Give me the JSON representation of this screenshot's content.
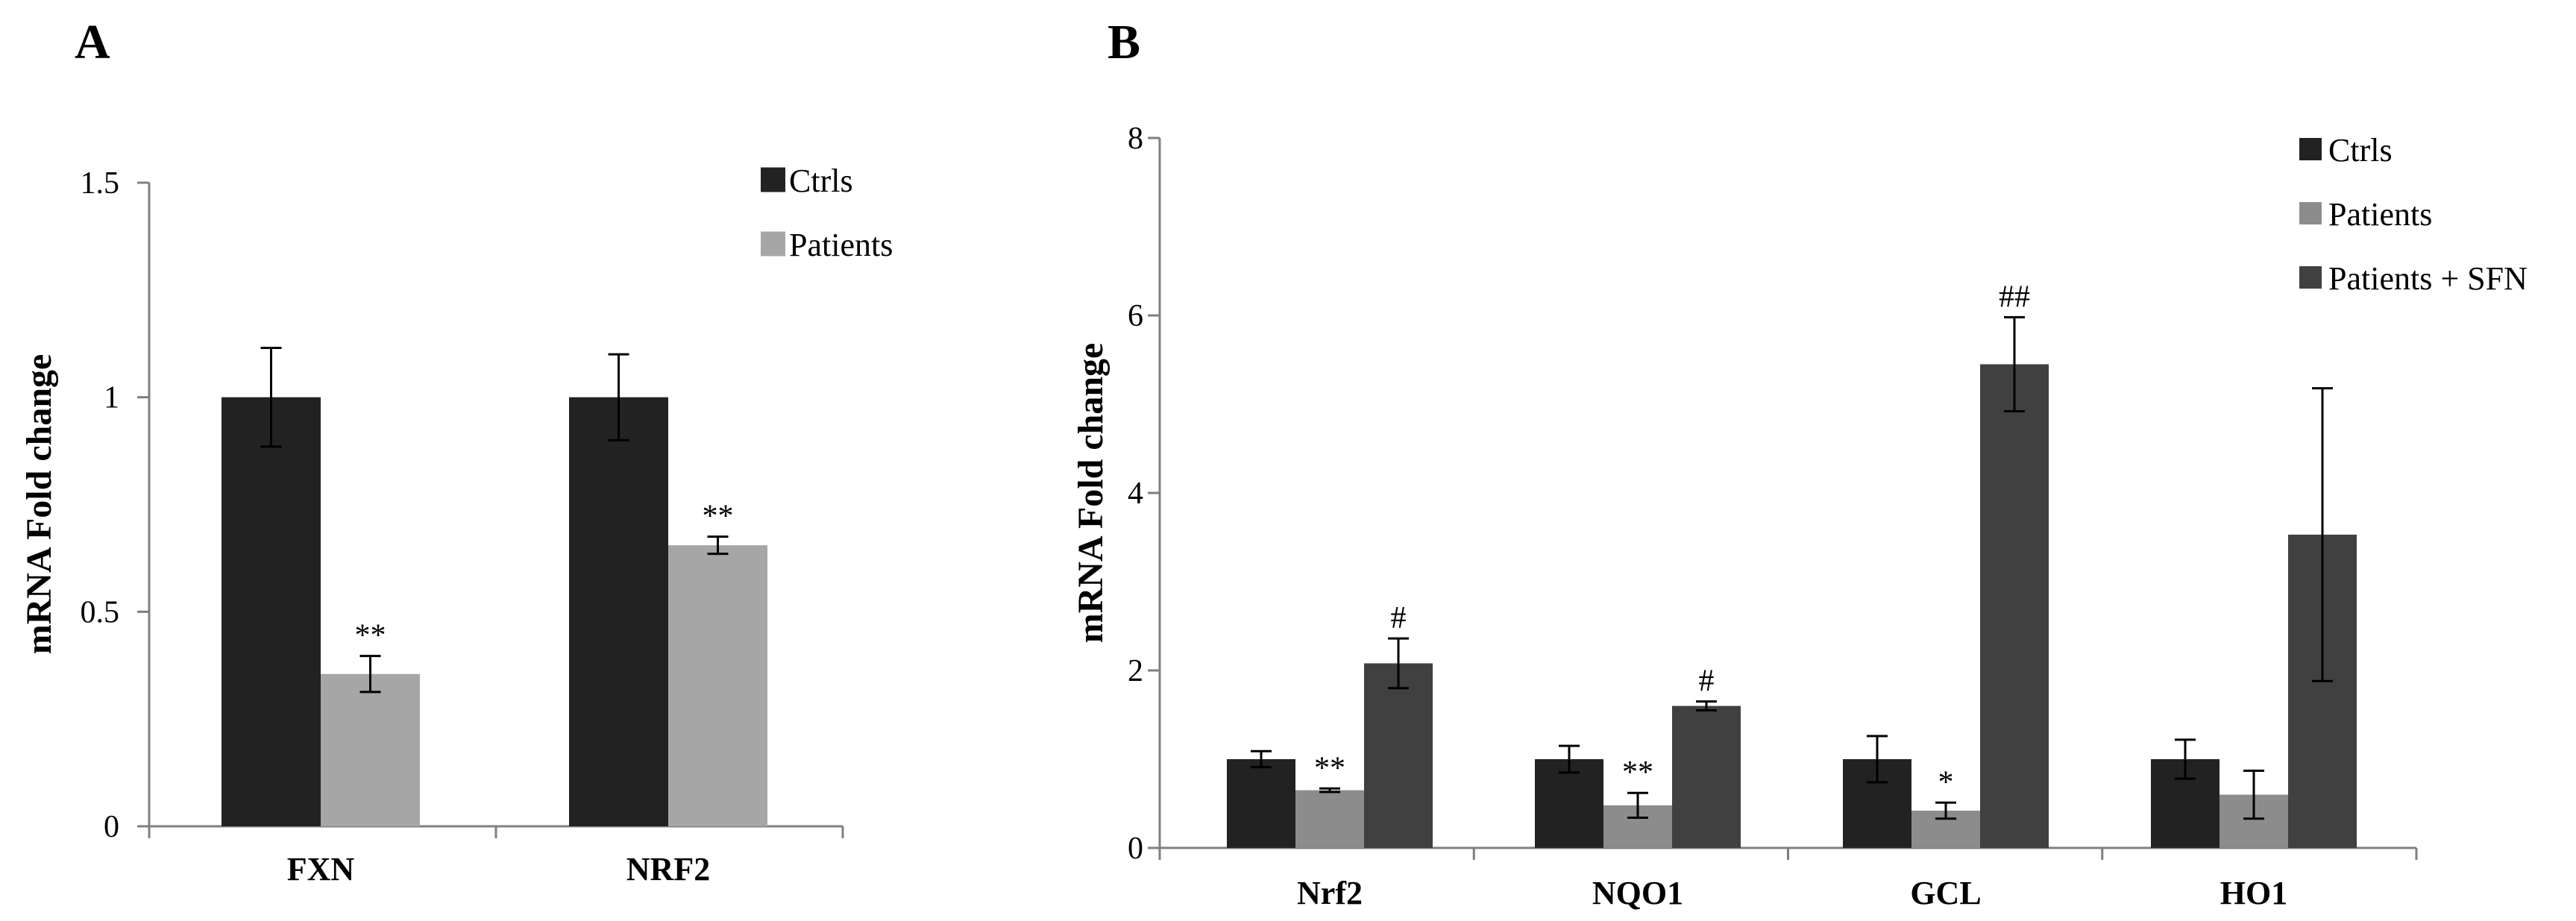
{
  "chart_data": [
    {
      "panel_label": "A",
      "type": "bar",
      "title": "",
      "xlabel": "",
      "ylabel": "mRNA Fold change",
      "ylim": [
        0,
        1.5
      ],
      "yticks": [
        "0",
        "0.5",
        "1",
        "1.5"
      ],
      "categories": [
        "FXN",
        "NRF2"
      ],
      "legend_position": "top-right",
      "series": [
        {
          "name": "Ctrls",
          "color": "#222222",
          "values": [
            1.0,
            1.0
          ],
          "errors": [
            0.115,
            0.1
          ]
        },
        {
          "name": "Patients",
          "color": "#a6a6a6",
          "values": [
            0.355,
            0.655
          ],
          "errors": [
            0.042,
            0.02
          ]
        }
      ],
      "annotations": [
        {
          "category": "FXN",
          "series": "Patients",
          "text": "**"
        },
        {
          "category": "NRF2",
          "series": "Patients",
          "text": "**"
        }
      ]
    },
    {
      "panel_label": "B",
      "type": "bar",
      "title": "",
      "xlabel": "",
      "ylabel": "mRNA Fold change",
      "ylim": [
        0,
        8
      ],
      "yticks": [
        "0",
        "2",
        "4",
        "6",
        "8"
      ],
      "categories": [
        "Nrf2",
        "NQO1",
        "GCL",
        "HO1"
      ],
      "legend_position": "top-right",
      "series": [
        {
          "name": "Ctrls",
          "color": "#222222",
          "values": [
            1.0,
            1.0,
            1.0,
            1.0
          ],
          "errors": [
            0.09,
            0.15,
            0.26,
            0.22
          ]
        },
        {
          "name": "Patients",
          "color": "#8c8c8c",
          "values": [
            0.65,
            0.48,
            0.42,
            0.6
          ],
          "errors": [
            0.02,
            0.14,
            0.09,
            0.27
          ]
        },
        {
          "name": "Patients + SFN",
          "color": "#404040",
          "values": [
            2.08,
            1.6,
            5.45,
            3.53
          ],
          "errors": [
            0.28,
            0.05,
            0.53,
            1.65
          ]
        }
      ],
      "annotations": [
        {
          "category": "Nrf2",
          "series": "Patients",
          "text": "**"
        },
        {
          "category": "Nrf2",
          "series": "Patients + SFN",
          "text": "#"
        },
        {
          "category": "NQO1",
          "series": "Patients",
          "text": "**"
        },
        {
          "category": "NQO1",
          "series": "Patients + SFN",
          "text": "#"
        },
        {
          "category": "GCL",
          "series": "Patients",
          "text": "*"
        },
        {
          "category": "GCL",
          "series": "Patients + SFN",
          "text": "##"
        }
      ]
    }
  ]
}
